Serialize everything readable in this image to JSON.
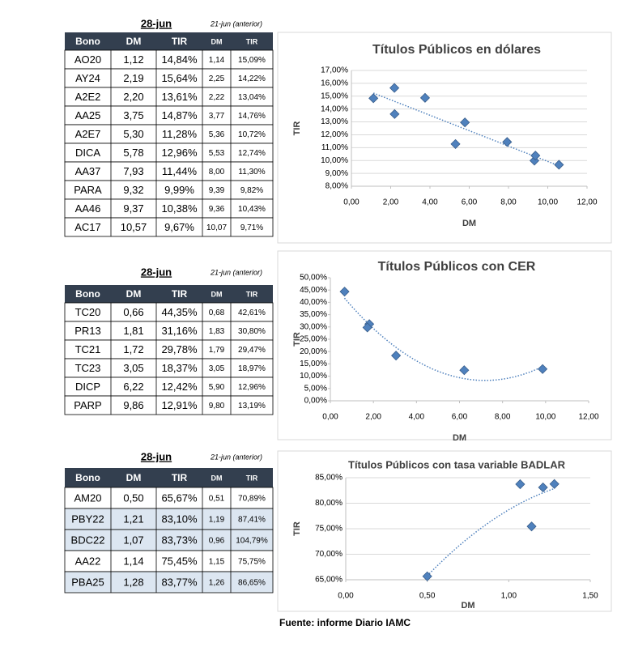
{
  "tables": [
    {
      "date": "28-jun",
      "previous": "21-jun (anterior)",
      "columns": [
        "Bono",
        "DM",
        "TIR",
        "DM",
        "TIR"
      ],
      "rows": [
        [
          "AO20",
          "1,12",
          "14,84%",
          "1,14",
          "15,09%"
        ],
        [
          "AY24",
          "2,19",
          "15,64%",
          "2,25",
          "14,22%"
        ],
        [
          "A2E2",
          "2,20",
          "13,61%",
          "2,22",
          "13,04%"
        ],
        [
          "AA25",
          "3,75",
          "14,87%",
          "3,77",
          "14,76%"
        ],
        [
          "A2E7",
          "5,30",
          "11,28%",
          "5,36",
          "10,72%"
        ],
        [
          "DICA",
          "5,78",
          "12,96%",
          "5,53",
          "12,74%"
        ],
        [
          "AA37",
          "7,93",
          "11,44%",
          "8,00",
          "11,30%"
        ],
        [
          "PARA",
          "9,32",
          "9,99%",
          "9,39",
          "9,82%"
        ],
        [
          "AA46",
          "9,37",
          "10,38%",
          "9,36",
          "10,43%"
        ],
        [
          "AC17",
          "10,57",
          "9,67%",
          "10,07",
          "9,71%"
        ]
      ],
      "highlight_rows": []
    },
    {
      "date": "28-jun",
      "previous": "21-jun (anterior)",
      "columns": [
        "Bono",
        "DM",
        "TIR",
        "DM",
        "TIR"
      ],
      "rows": [
        [
          "TC20",
          "0,66",
          "44,35%",
          "0,68",
          "42,61%"
        ],
        [
          "PR13",
          "1,81",
          "31,16%",
          "1,83",
          "30,80%"
        ],
        [
          "TC21",
          "1,72",
          "29,78%",
          "1,79",
          "29,47%"
        ],
        [
          "TC23",
          "3,05",
          "18,37%",
          "3,05",
          "18,97%"
        ],
        [
          "DICP",
          "6,22",
          "12,42%",
          "5,90",
          "12,96%"
        ],
        [
          "PARP",
          "9,86",
          "12,91%",
          "9,80",
          "13,19%"
        ]
      ],
      "highlight_rows": []
    },
    {
      "date": "28-jun",
      "previous": "21-jun (anterior)",
      "columns": [
        "Bono",
        "DM",
        "TIR",
        "DM",
        "TIR"
      ],
      "rows": [
        [
          "AM20",
          "0,50",
          "65,67%",
          "0,51",
          "70,89%"
        ],
        [
          "PBY22",
          "1,21",
          "83,10%",
          "1,19",
          "87,41%"
        ],
        [
          "BDC22",
          "1,07",
          "83,73%",
          "0,96",
          "104,79%"
        ],
        [
          "AA22",
          "1,14",
          "75,45%",
          "1,15",
          "75,75%"
        ],
        [
          "PBA25",
          "1,28",
          "83,77%",
          "1,26",
          "86,65%"
        ]
      ],
      "highlight_rows": [
        1,
        2,
        4
      ]
    }
  ],
  "chart_data": [
    {
      "type": "scatter",
      "title": "Títulos Públicos en dólares",
      "x_label": "DM",
      "y_label": "TIR",
      "color": "#4f81bd",
      "trendline": 1,
      "grid": true,
      "x": [
        1.12,
        2.19,
        2.2,
        3.75,
        5.3,
        5.78,
        7.93,
        9.32,
        9.37,
        10.57
      ],
      "values": [
        14.84,
        15.64,
        13.61,
        14.87,
        11.28,
        12.96,
        11.44,
        9.99,
        10.38,
        9.67
      ],
      "xlim": [
        0,
        12
      ],
      "xticks": [
        {
          "value": 0,
          "label": "0,00"
        },
        {
          "value": 2,
          "label": "2,00"
        },
        {
          "value": 4,
          "label": "4,00"
        },
        {
          "value": 6,
          "label": "6,00"
        },
        {
          "value": 8,
          "label": "8,00"
        },
        {
          "value": 10,
          "label": "10,00"
        },
        {
          "value": 12,
          "label": "12,00"
        }
      ],
      "ylim": [
        8,
        17
      ],
      "yticks": [
        {
          "value": 8,
          "label": "8,00%"
        },
        {
          "value": 9,
          "label": "9,00%"
        },
        {
          "value": 10,
          "label": "10,00%"
        },
        {
          "value": 11,
          "label": "11,00%"
        },
        {
          "value": 12,
          "label": "12,00%"
        },
        {
          "value": 13,
          "label": "13,00%"
        },
        {
          "value": 14,
          "label": "14,00%"
        },
        {
          "value": 15,
          "label": "15,00%"
        },
        {
          "value": 16,
          "label": "16,00%"
        },
        {
          "value": 17,
          "label": "17,00%"
        }
      ]
    },
    {
      "type": "scatter",
      "title": "Títulos Públicos con CER",
      "x_label": "DM",
      "y_label": "TIR",
      "color": "#4f81bd",
      "trendline": 2,
      "grid": false,
      "x": [
        0.66,
        1.81,
        1.72,
        3.05,
        6.22,
        9.86
      ],
      "values": [
        44.35,
        31.16,
        29.78,
        18.37,
        12.42,
        12.91
      ],
      "xlim": [
        0,
        12
      ],
      "xticks": [
        {
          "value": 0,
          "label": "0,00"
        },
        {
          "value": 2,
          "label": "2,00"
        },
        {
          "value": 4,
          "label": "4,00"
        },
        {
          "value": 6,
          "label": "6,00"
        },
        {
          "value": 8,
          "label": "8,00"
        },
        {
          "value": 10,
          "label": "10,00"
        },
        {
          "value": 12,
          "label": "12,00"
        }
      ],
      "ylim": [
        0,
        50
      ],
      "yticks": [
        {
          "value": 0,
          "label": "0,00%"
        },
        {
          "value": 5,
          "label": "5,00%"
        },
        {
          "value": 10,
          "label": "10,00%"
        },
        {
          "value": 15,
          "label": "15,00%"
        },
        {
          "value": 20,
          "label": "20,00%"
        },
        {
          "value": 25,
          "label": "25,00%"
        },
        {
          "value": 30,
          "label": "30,00%"
        },
        {
          "value": 35,
          "label": "35,00%"
        },
        {
          "value": 40,
          "label": "40,00%"
        },
        {
          "value": 45,
          "label": "45,00%"
        },
        {
          "value": 50,
          "label": "50,00%"
        }
      ]
    },
    {
      "type": "scatter",
      "title": "Títulos Públicos con tasa variable BADLAR",
      "x_label": "DM",
      "y_label": "TIR",
      "color": "#4f81bd",
      "trendline": 2,
      "grid": true,
      "x": [
        0.5,
        1.21,
        1.07,
        1.14,
        1.28
      ],
      "values": [
        65.67,
        83.1,
        83.73,
        75.45,
        83.77
      ],
      "xlim": [
        0,
        1.5
      ],
      "xticks": [
        {
          "value": 0,
          "label": "0,00"
        },
        {
          "value": 0.5,
          "label": "0,50"
        },
        {
          "value": 1,
          "label": "1,00"
        },
        {
          "value": 1.5,
          "label": "1,50"
        }
      ],
      "ylim": [
        65,
        85
      ],
      "yticks": [
        {
          "value": 65,
          "label": "65,00%"
        },
        {
          "value": 70,
          "label": "70,00%"
        },
        {
          "value": 75,
          "label": "75,00%"
        },
        {
          "value": 80,
          "label": "80,00%"
        },
        {
          "value": 85,
          "label": "85,00%"
        }
      ]
    }
  ],
  "source": "Fuente: informe Diario IAMC"
}
